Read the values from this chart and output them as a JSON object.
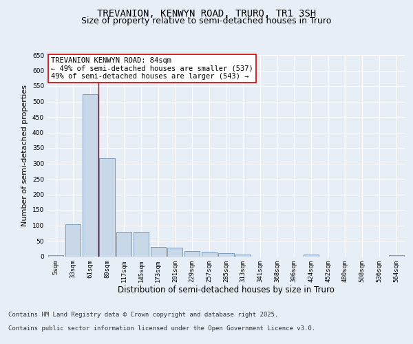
{
  "title_line1": "TREVANION, KENWYN ROAD, TRURO, TR1 3SH",
  "title_line2": "Size of property relative to semi-detached houses in Truro",
  "xlabel": "Distribution of semi-detached houses by size in Truro",
  "ylabel": "Number of semi-detached properties",
  "categories": [
    "5sqm",
    "33sqm",
    "61sqm",
    "89sqm",
    "117sqm",
    "145sqm",
    "173sqm",
    "201sqm",
    "229sqm",
    "257sqm",
    "285sqm",
    "313sqm",
    "341sqm",
    "368sqm",
    "396sqm",
    "424sqm",
    "452sqm",
    "480sqm",
    "508sqm",
    "536sqm",
    "564sqm"
  ],
  "values": [
    3,
    104,
    524,
    317,
    78,
    78,
    30,
    28,
    17,
    15,
    11,
    5,
    0,
    0,
    0,
    5,
    0,
    0,
    0,
    0,
    3
  ],
  "bar_color": "#c8d8e8",
  "bar_edge_color": "#5880a8",
  "vline_x": 2.5,
  "vline_color": "#cc0000",
  "annotation_title": "TREVANION KENWYN ROAD: 84sqm",
  "annotation_line1": "← 49% of semi-detached houses are smaller (537)",
  "annotation_line2": "49% of semi-detached houses are larger (543) →",
  "annotation_box_facecolor": "#ffffff",
  "annotation_box_edgecolor": "#cc0000",
  "ylim": [
    0,
    650
  ],
  "yticks": [
    0,
    50,
    100,
    150,
    200,
    250,
    300,
    350,
    400,
    450,
    500,
    550,
    600,
    650
  ],
  "bg_color": "#e8eef6",
  "grid_color": "#ffffff",
  "title_fontsize": 10,
  "subtitle_fontsize": 9,
  "ylabel_fontsize": 8,
  "xlabel_fontsize": 8.5,
  "tick_fontsize": 6.5,
  "annotation_fontsize": 7.5,
  "footer_fontsize": 6.5,
  "footer_line1": "Contains HM Land Registry data © Crown copyright and database right 2025.",
  "footer_line2": "Contains public sector information licensed under the Open Government Licence v3.0."
}
